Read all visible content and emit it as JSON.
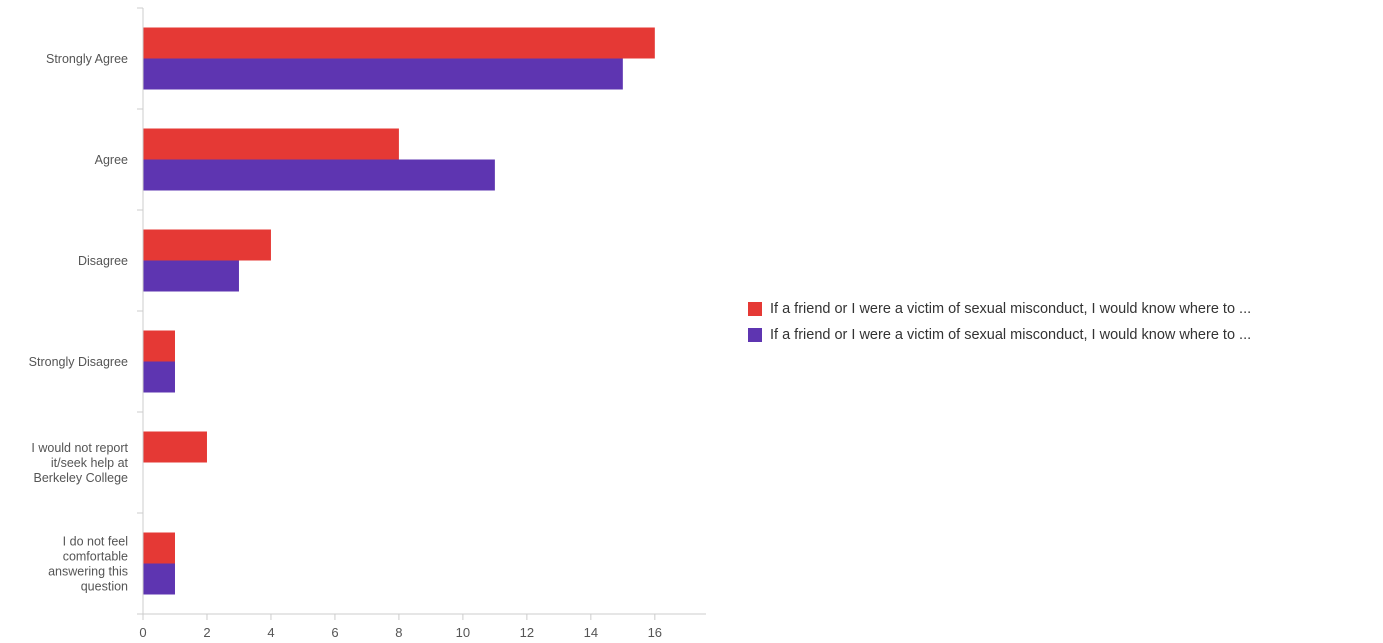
{
  "chart_data": {
    "type": "bar",
    "orientation": "horizontal",
    "categories": [
      "Strongly Agree",
      "Agree",
      "Disagree",
      "Strongly Disagree",
      "I would not report it/seek help at Berkeley College",
      "I do not feel comfortable answering this question"
    ],
    "category_lines": [
      [
        "Strongly Agree"
      ],
      [
        "Agree"
      ],
      [
        "Disagree"
      ],
      [
        "Strongly Disagree"
      ],
      [
        "I would not report",
        "it/seek help at",
        "Berkeley College"
      ],
      [
        "I do not feel",
        "comfortable",
        "answering this",
        "question"
      ]
    ],
    "series": [
      {
        "name": "If a friend or I were a victim of sexual misconduct, I would know where to ...",
        "color": "#e53935",
        "values": [
          16,
          8,
          4,
          1,
          2,
          1
        ]
      },
      {
        "name": "If a friend or I were a victim of sexual misconduct, I would know where to ...",
        "color": "#5e35b1",
        "values": [
          15,
          11,
          3,
          1,
          0,
          1
        ]
      }
    ],
    "xlim": [
      0,
      17.6
    ],
    "xticks": [
      0,
      2,
      4,
      6,
      8,
      10,
      12,
      14,
      16
    ],
    "xlabel": "",
    "ylabel": "",
    "grid": false,
    "legend_position": "right"
  }
}
